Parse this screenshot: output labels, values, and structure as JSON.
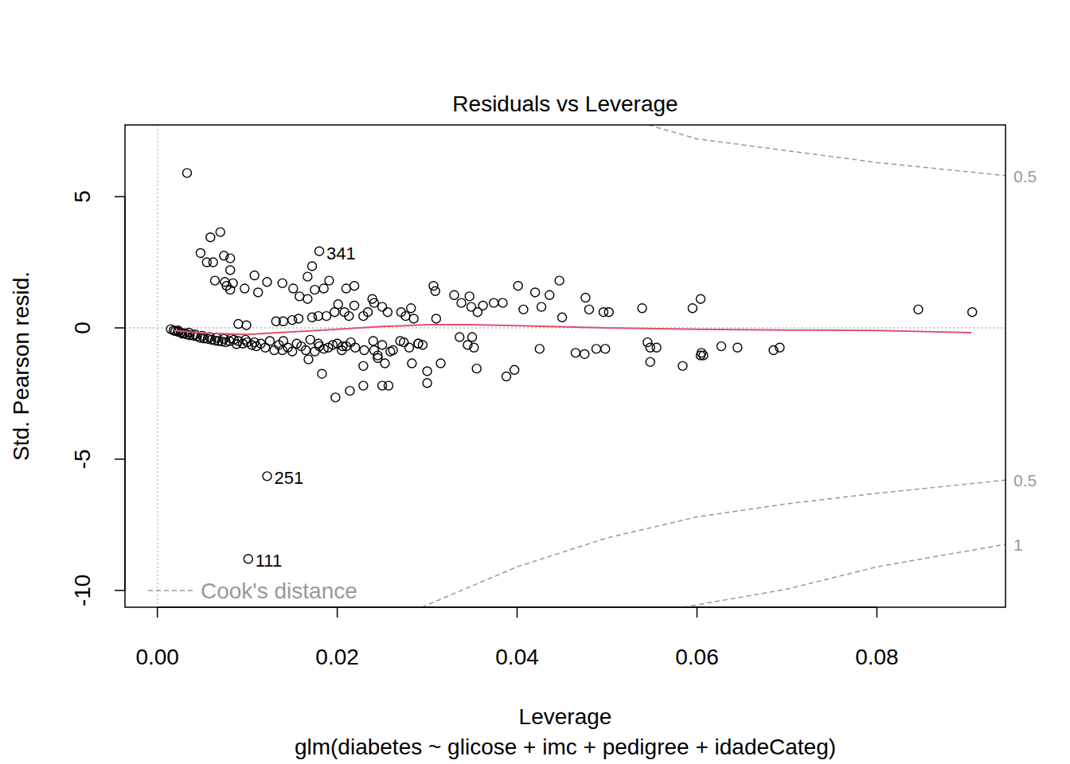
{
  "chart_data": {
    "type": "scatter",
    "title": "Residuals vs Leverage",
    "subtitle": "glm(diabetes ~ glicose + imc + pedigree + idadeCateg)",
    "x_label": "Leverage",
    "y_label": "Std. Pearson resid.",
    "xlim": [
      -0.0036,
      0.0943
    ],
    "ylim": [
      -10.64,
      7.73
    ],
    "xticks": [
      {
        "value": 0,
        "label": "0.00"
      },
      {
        "value": 0.02,
        "label": "0.02"
      },
      {
        "value": 0.04,
        "label": "0.04"
      },
      {
        "value": 0.06,
        "label": "0.06"
      },
      {
        "value": 0.08,
        "label": "0.08"
      }
    ],
    "yticks": [
      -10,
      -5,
      0,
      5
    ],
    "color": "#000000",
    "marker": "circle",
    "x": [
      0.0033,
      0.0122,
      0.0101,
      0.018,
      0.0048,
      0.0059,
      0.007,
      0.0055,
      0.0062,
      0.0074,
      0.0081,
      0.0081,
      0.0064,
      0.0075,
      0.0077,
      0.0081,
      0.0084,
      0.0097,
      0.0108,
      0.0122,
      0.0112,
      0.0139,
      0.0151,
      0.0158,
      0.0167,
      0.0172,
      0.0167,
      0.0175,
      0.0185,
      0.0191,
      0.021,
      0.0219,
      0.0219,
      0.0239,
      0.0241,
      0.025,
      0.0271,
      0.0282,
      0.0307,
      0.0309,
      0.033,
      0.0338,
      0.0347,
      0.0349,
      0.0356,
      0.0362,
      0.0374,
      0.0384,
      0.0401,
      0.0407,
      0.042,
      0.0427,
      0.0436,
      0.0447,
      0.045,
      0.0476,
      0.048,
      0.0496,
      0.0502,
      0.0539,
      0.0595,
      0.0604,
      0.0846,
      0.0906,
      0.009,
      0.0099,
      0.0132,
      0.014,
      0.015,
      0.0157,
      0.0172,
      0.0179,
      0.0188,
      0.0197,
      0.0201,
      0.0208,
      0.0213,
      0.0229,
      0.0234,
      0.0256,
      0.0276,
      0.0285,
      0.031,
      0.0015,
      0.0018,
      0.002,
      0.0023,
      0.0026,
      0.003,
      0.0033,
      0.0036,
      0.004,
      0.0044,
      0.0048,
      0.0052,
      0.0056,
      0.006,
      0.0064,
      0.0068,
      0.0072,
      0.0076,
      0.008,
      0.0085,
      0.009,
      0.0095,
      0.01,
      0.0105,
      0.011,
      0.0115,
      0.012,
      0.0125,
      0.013,
      0.0135,
      0.014,
      0.0145,
      0.015,
      0.0155,
      0.016,
      0.0165,
      0.017,
      0.0175,
      0.018,
      0.0185,
      0.019,
      0.0195,
      0.02,
      0.0205,
      0.021,
      0.0215,
      0.022,
      0.023,
      0.024,
      0.0245,
      0.025,
      0.0262,
      0.027,
      0.028,
      0.029,
      0.0295,
      0.0345,
      0.0352,
      0.0425,
      0.0465,
      0.0475,
      0.0488,
      0.0498,
      0.0545,
      0.0548,
      0.0555,
      0.0605,
      0.0607,
      0.0627,
      0.0645,
      0.0685,
      0.0692,
      0.0023,
      0.0028,
      0.0035,
      0.0042,
      0.005,
      0.0058,
      0.0066,
      0.0074,
      0.0082,
      0.0088,
      0.0098,
      0.0108,
      0.0183,
      0.0198,
      0.0214,
      0.0229,
      0.025,
      0.0257,
      0.0229,
      0.0168,
      0.0253,
      0.0245,
      0.0283,
      0.03,
      0.03,
      0.0315,
      0.0336,
      0.035,
      0.0355,
      0.0388,
      0.0397,
      0.0548,
      0.0584,
      0.0604,
      0.0259,
      0.0241,
      0.0206,
      0.0139,
      0.0179,
      0.029,
      0.0274
    ],
    "y": [
      5.9,
      -5.65,
      -8.8,
      2.92,
      2.85,
      3.45,
      3.65,
      2.5,
      2.5,
      2.75,
      2.65,
      2.2,
      1.8,
      1.75,
      1.6,
      1.45,
      1.7,
      1.5,
      2.0,
      1.75,
      1.35,
      1.7,
      1.5,
      1.2,
      1.1,
      2.35,
      1.95,
      1.45,
      1.5,
      1.8,
      1.5,
      1.6,
      0.85,
      1.1,
      0.95,
      0.8,
      0.6,
      0.75,
      1.6,
      1.4,
      1.25,
      0.95,
      1.2,
      0.8,
      0.6,
      0.85,
      0.95,
      0.95,
      1.6,
      0.7,
      1.35,
      0.8,
      1.25,
      1.8,
      0.4,
      1.15,
      0.7,
      0.6,
      0.6,
      0.75,
      0.75,
      1.1,
      0.7,
      0.6,
      0.15,
      0.1,
      0.25,
      0.25,
      0.3,
      0.35,
      0.4,
      0.45,
      0.45,
      0.6,
      0.9,
      0.6,
      0.45,
      0.45,
      0.6,
      0.6,
      0.45,
      0.35,
      0.35,
      -0.05,
      -0.1,
      -0.12,
      -0.15,
      -0.18,
      -0.2,
      -0.25,
      -0.28,
      -0.3,
      -0.33,
      -0.38,
      -0.4,
      -0.42,
      -0.45,
      -0.48,
      -0.5,
      -0.52,
      -0.55,
      -0.5,
      -0.45,
      -0.5,
      -0.6,
      -0.55,
      -0.65,
      -0.7,
      -0.6,
      -0.75,
      -0.5,
      -0.85,
      -0.65,
      -0.5,
      -0.75,
      -0.9,
      -0.6,
      -0.7,
      -0.85,
      -0.45,
      -0.9,
      -0.7,
      -0.8,
      -0.75,
      -0.65,
      -0.6,
      -0.85,
      -0.7,
      -0.55,
      -0.75,
      -0.85,
      -0.5,
      -1.05,
      -0.65,
      -0.85,
      -0.5,
      -0.75,
      -0.6,
      -0.65,
      -0.65,
      -0.75,
      -0.8,
      -0.95,
      -1.0,
      -0.8,
      -0.8,
      -0.55,
      -0.75,
      -0.75,
      -0.95,
      -1.05,
      -0.7,
      -0.75,
      -0.85,
      -0.75,
      -0.1,
      -0.22,
      -0.18,
      -0.25,
      -0.3,
      -0.35,
      -0.38,
      -0.42,
      -0.4,
      -0.62,
      -0.45,
      -0.55,
      -1.75,
      -2.65,
      -2.4,
      -2.2,
      -2.2,
      -2.2,
      -1.45,
      -1.2,
      -1.35,
      -1.15,
      -1.35,
      -1.65,
      -2.1,
      -1.35,
      -0.35,
      -0.35,
      -1.55,
      -1.85,
      -1.6,
      -1.3,
      -1.45,
      -1.05,
      -0.9,
      -0.85,
      -0.7,
      -0.85,
      -0.6,
      -0.6,
      -0.55
    ],
    "annotations": [
      {
        "text": "341",
        "x": 0.018,
        "y": 2.92
      },
      {
        "text": "251",
        "x": 0.0122,
        "y": -5.65
      },
      {
        "text": "111",
        "x": 0.0101,
        "y": -8.8
      }
    ],
    "smooth": {
      "color": "#DF536B",
      "x": [
        0.0018,
        0.005,
        0.01,
        0.015,
        0.02,
        0.025,
        0.03,
        0.035,
        0.04,
        0.05,
        0.06,
        0.07,
        0.08,
        0.0905
      ],
      "y": [
        -0.1,
        -0.2,
        -0.25,
        -0.15,
        -0.05,
        0.05,
        0.12,
        0.12,
        0.08,
        0.0,
        -0.05,
        -0.08,
        -0.1,
        -0.18
      ]
    },
    "reference_lines": {
      "x": 0,
      "y": 0
    },
    "cooks_distance": {
      "label": "Cook's distance",
      "color": "#999999",
      "line_style": "dashed",
      "curves": [
        {
          "level": 0.5,
          "x": [
            0.0546,
            0.06,
            0.07,
            0.08,
            0.09,
            0.0943
          ],
          "y": [
            7.73,
            7.2,
            6.75,
            6.3,
            5.95,
            5.8
          ]
        },
        {
          "level": 0.5,
          "x": [
            0.0294,
            0.04,
            0.05,
            0.06,
            0.07,
            0.08,
            0.09,
            0.0943
          ],
          "y": [
            -10.64,
            -9.1,
            -8.0,
            -7.2,
            -6.7,
            -6.3,
            -5.95,
            -5.8
          ]
        },
        {
          "level": 1,
          "x": [
            0.0585,
            0.07,
            0.08,
            0.09,
            0.0943
          ],
          "y": [
            -10.64,
            -9.95,
            -9.1,
            -8.5,
            -8.24
          ]
        }
      ]
    }
  }
}
